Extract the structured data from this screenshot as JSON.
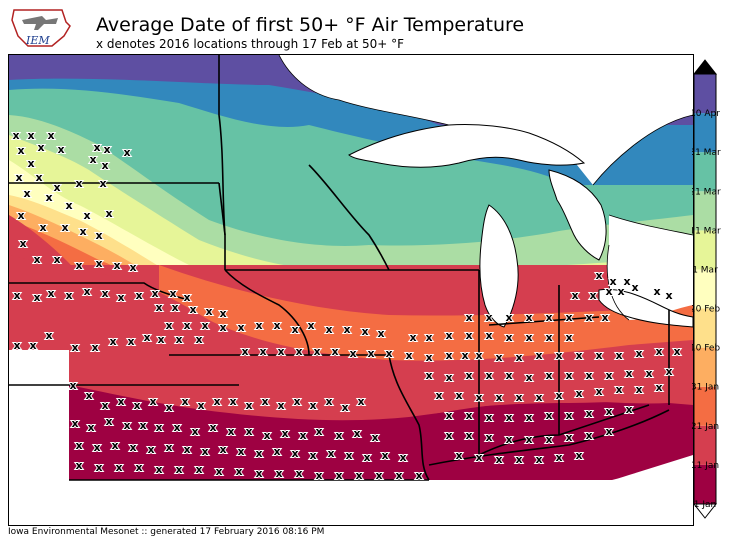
{
  "header": {
    "logo_text": "IEM",
    "title": "Average Date of first 50+ °F Air Temperature",
    "subtitle": "x denotes 2016 locations through 17 Feb at 50+ °F"
  },
  "colorbar": {
    "levels": [
      {
        "label": "1 Jan",
        "color": "#9e0142"
      },
      {
        "label": "11 Jan",
        "color": "#d53e4f"
      },
      {
        "label": "21 Jan",
        "color": "#f46d43"
      },
      {
        "label": "31 Jan",
        "color": "#fdae61"
      },
      {
        "label": "10 Feb",
        "color": "#fee08b"
      },
      {
        "label": "20 Feb",
        "color": "#ffffbf"
      },
      {
        "label": "1 Mar",
        "color": "#e6f598"
      },
      {
        "label": "11 Mar",
        "color": "#abdda4"
      },
      {
        "label": "21 Mar",
        "color": "#66c2a5"
      },
      {
        "label": "31 Mar",
        "color": "#3288bd"
      },
      {
        "label": "10 Apr",
        "color": "#5e4fa2"
      }
    ],
    "over_color": "#000000",
    "under_color": "#ffffff"
  },
  "map": {
    "marker_symbol": "x",
    "marker_count_note": "",
    "water_color": "#ffffff",
    "outside_color": "#ffffff"
  },
  "footer": {
    "text": "Iowa Environmental Mesonet :: generated 17 February 2016 08:16 PM"
  }
}
